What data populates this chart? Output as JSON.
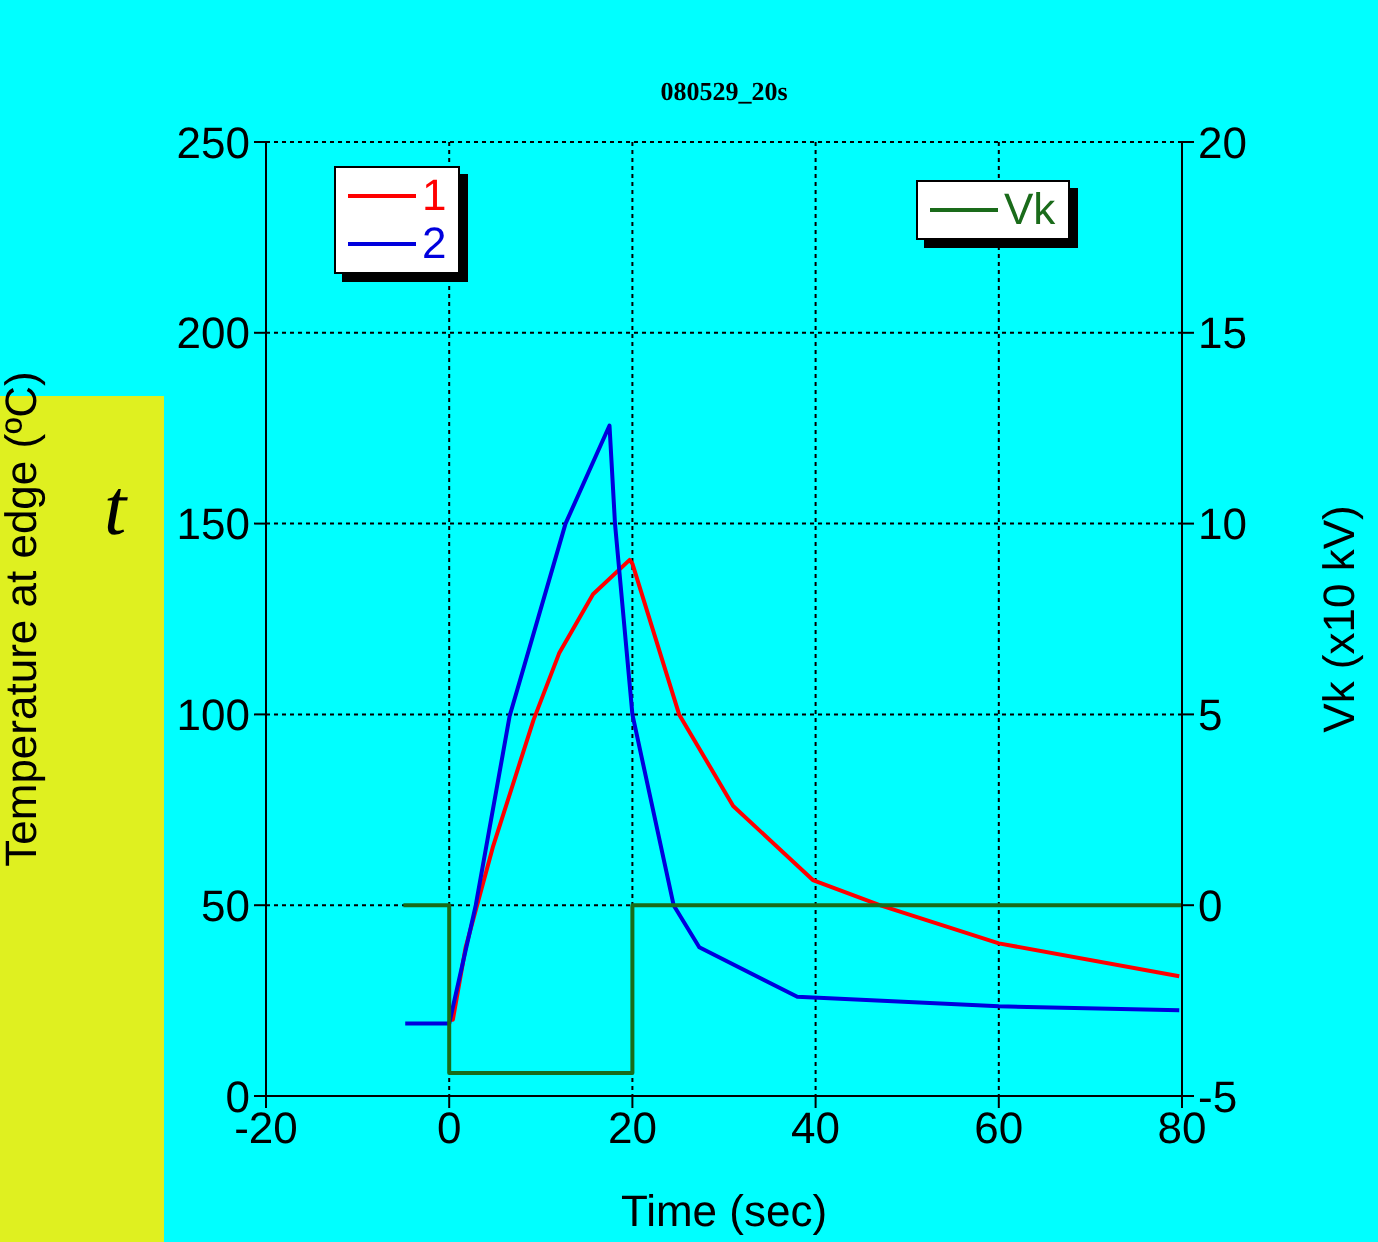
{
  "chart_data": {
    "type": "line",
    "title": "080529_20s",
    "xlabel": "Time (sec)",
    "ylabel": "Temperature at edge (ºC)",
    "y2label": "Vk (x10 kV)",
    "annotations": [
      "t"
    ],
    "series": [
      {
        "name": "1",
        "color": "#ff0000",
        "x": [
          0,
          0.4,
          1.8,
          4.8,
          9.2,
          12,
          15.7,
          19.7,
          20,
          25.1,
          31,
          39.7,
          47,
          60,
          79.7
        ],
        "values": [
          20,
          20,
          39,
          65.5,
          98.5,
          116,
          131.5,
          140.5,
          139.5,
          100,
          76,
          56.6,
          50,
          40,
          31.4
        ]
      },
      {
        "name": "2",
        "color": "#0000dd",
        "x": [
          -4.8,
          0,
          2.9,
          6.6,
          12.7,
          17.5,
          18.1,
          20,
          24.5,
          27.3,
          38,
          60,
          79.7
        ],
        "values": [
          19,
          19,
          50,
          99.6,
          150,
          175.7,
          150,
          100,
          50,
          39,
          26,
          23.5,
          22.5
        ]
      },
      {
        "name": "Vk",
        "color": "#1a6b1a",
        "axis": "y2",
        "x": [
          -5,
          0,
          0,
          20,
          20,
          80
        ],
        "values": [
          0,
          0,
          -4.4,
          -4.4,
          0,
          0
        ]
      }
    ],
    "xlim": [
      -20,
      80
    ],
    "xticks": [
      -20,
      0,
      20,
      40,
      60,
      80
    ],
    "ylim": [
      0,
      250
    ],
    "yticks": [
      0,
      50,
      100,
      150,
      200,
      250
    ],
    "y2lim": [
      -5,
      20
    ],
    "y2ticks": [
      -5,
      0,
      5,
      10,
      15,
      20
    ],
    "grid": true,
    "legend": "top",
    "marker": "none",
    "line_style": "solid"
  }
}
